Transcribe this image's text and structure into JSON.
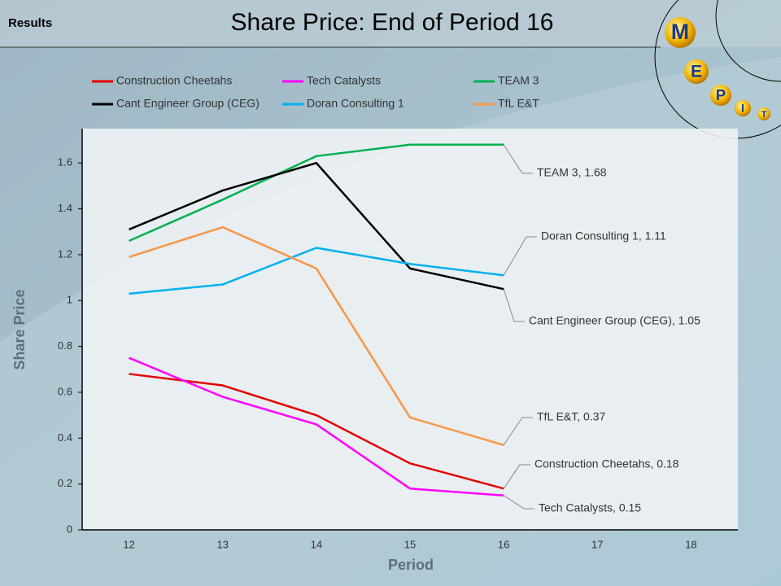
{
  "header": {
    "section": "Results",
    "logo_letters": [
      "M",
      "E",
      "P",
      "I",
      "T"
    ]
  },
  "chart_data": {
    "type": "line",
    "title": "Share Price: End of Period 16",
    "x_label": "Period",
    "y_label": "Share Price",
    "categories": [
      "12",
      "13",
      "14",
      "15",
      "16",
      "17",
      "18"
    ],
    "ylim": [
      0,
      1.75
    ],
    "yticks": [
      0,
      0.2,
      0.4,
      0.6,
      0.8,
      1,
      1.2,
      1.4,
      1.6
    ],
    "grid": false,
    "series": [
      {
        "name": "Construction Cheetahs",
        "color": "#e30000",
        "values": [
          0.68,
          0.63,
          0.5,
          0.29,
          0.18,
          null,
          null
        ],
        "value_labels": [
          null,
          null,
          null,
          null,
          "Construction Cheetahs, 0.18",
          null,
          null
        ]
      },
      {
        "name": "Tech Catalysts",
        "color": "#ff00ff",
        "values": [
          0.75,
          0.58,
          0.46,
          0.18,
          0.15,
          null,
          null
        ],
        "value_labels": [
          null,
          null,
          null,
          null,
          "Tech Catalysts, 0.15",
          null,
          null
        ]
      },
      {
        "name": "TEAM 3",
        "color": "#00b050",
        "values": [
          1.26,
          1.44,
          1.63,
          1.68,
          1.68,
          null,
          null
        ],
        "value_labels": [
          null,
          null,
          null,
          null,
          "TEAM 3, 1.68",
          null,
          null
        ]
      },
      {
        "name": "Cant Engineer Group (CEG)",
        "color": "#000000",
        "values": [
          1.31,
          1.48,
          1.6,
          1.14,
          1.05,
          null,
          null
        ],
        "value_labels": [
          null,
          null,
          null,
          null,
          "Cant Engineer Group (CEG), 1.05",
          null,
          null
        ]
      },
      {
        "name": "Doran Consulting 1",
        "color": "#00b0f0",
        "values": [
          1.03,
          1.07,
          1.23,
          1.16,
          1.11,
          null,
          null
        ],
        "value_labels": [
          null,
          null,
          null,
          null,
          "Doran Consulting 1, 1.11",
          null,
          null
        ]
      },
      {
        "name": "TfL E&T",
        "color": "#f79646",
        "values": [
          1.19,
          1.32,
          1.14,
          0.49,
          0.37,
          null,
          null
        ],
        "value_labels": [
          null,
          null,
          null,
          null,
          "TfL E&T, 0.37",
          null,
          null
        ]
      }
    ]
  }
}
